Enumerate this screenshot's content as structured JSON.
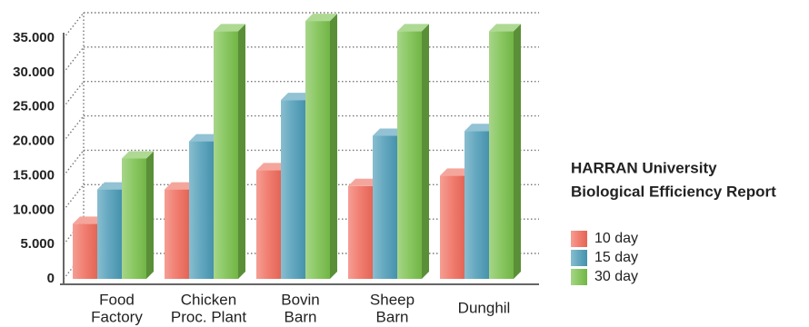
{
  "chart_data": {
    "type": "bar3d",
    "title": [
      "HARRAN University",
      "Biological Efficiency Report"
    ],
    "categories": [
      [
        "Food",
        "Factory"
      ],
      [
        "Chicken",
        "Proc. Plant"
      ],
      [
        "Bovin",
        "Barn"
      ],
      [
        "Sheep",
        "Barn"
      ],
      [
        "Dunghil"
      ]
    ],
    "series": [
      {
        "name": "10 day",
        "color": "#ef6a5a",
        "values": [
          8000,
          13000,
          15800,
          13500,
          15000
        ]
      },
      {
        "name": "15 day",
        "color": "#4a9ab5",
        "values": [
          13000,
          20000,
          26000,
          20800,
          21500
        ]
      },
      {
        "name": "30 day",
        "color": "#78bf4a",
        "values": [
          17500,
          36000,
          37500,
          36000,
          36000
        ]
      }
    ],
    "ylim": [
      0,
      35000
    ],
    "yticks": [
      0,
      {
        "value": 5000,
        "label": "5.000"
      },
      {
        "value": 10000,
        "label": "10.000"
      },
      {
        "value": 15000,
        "label": "15.000"
      },
      {
        "value": 20000,
        "label": "20.000"
      },
      {
        "value": 25000,
        "label": "25.000"
      },
      {
        "value": 30000,
        "label": "30.000"
      },
      {
        "value": 35000,
        "label": "35.000"
      }
    ],
    "grid": true
  }
}
